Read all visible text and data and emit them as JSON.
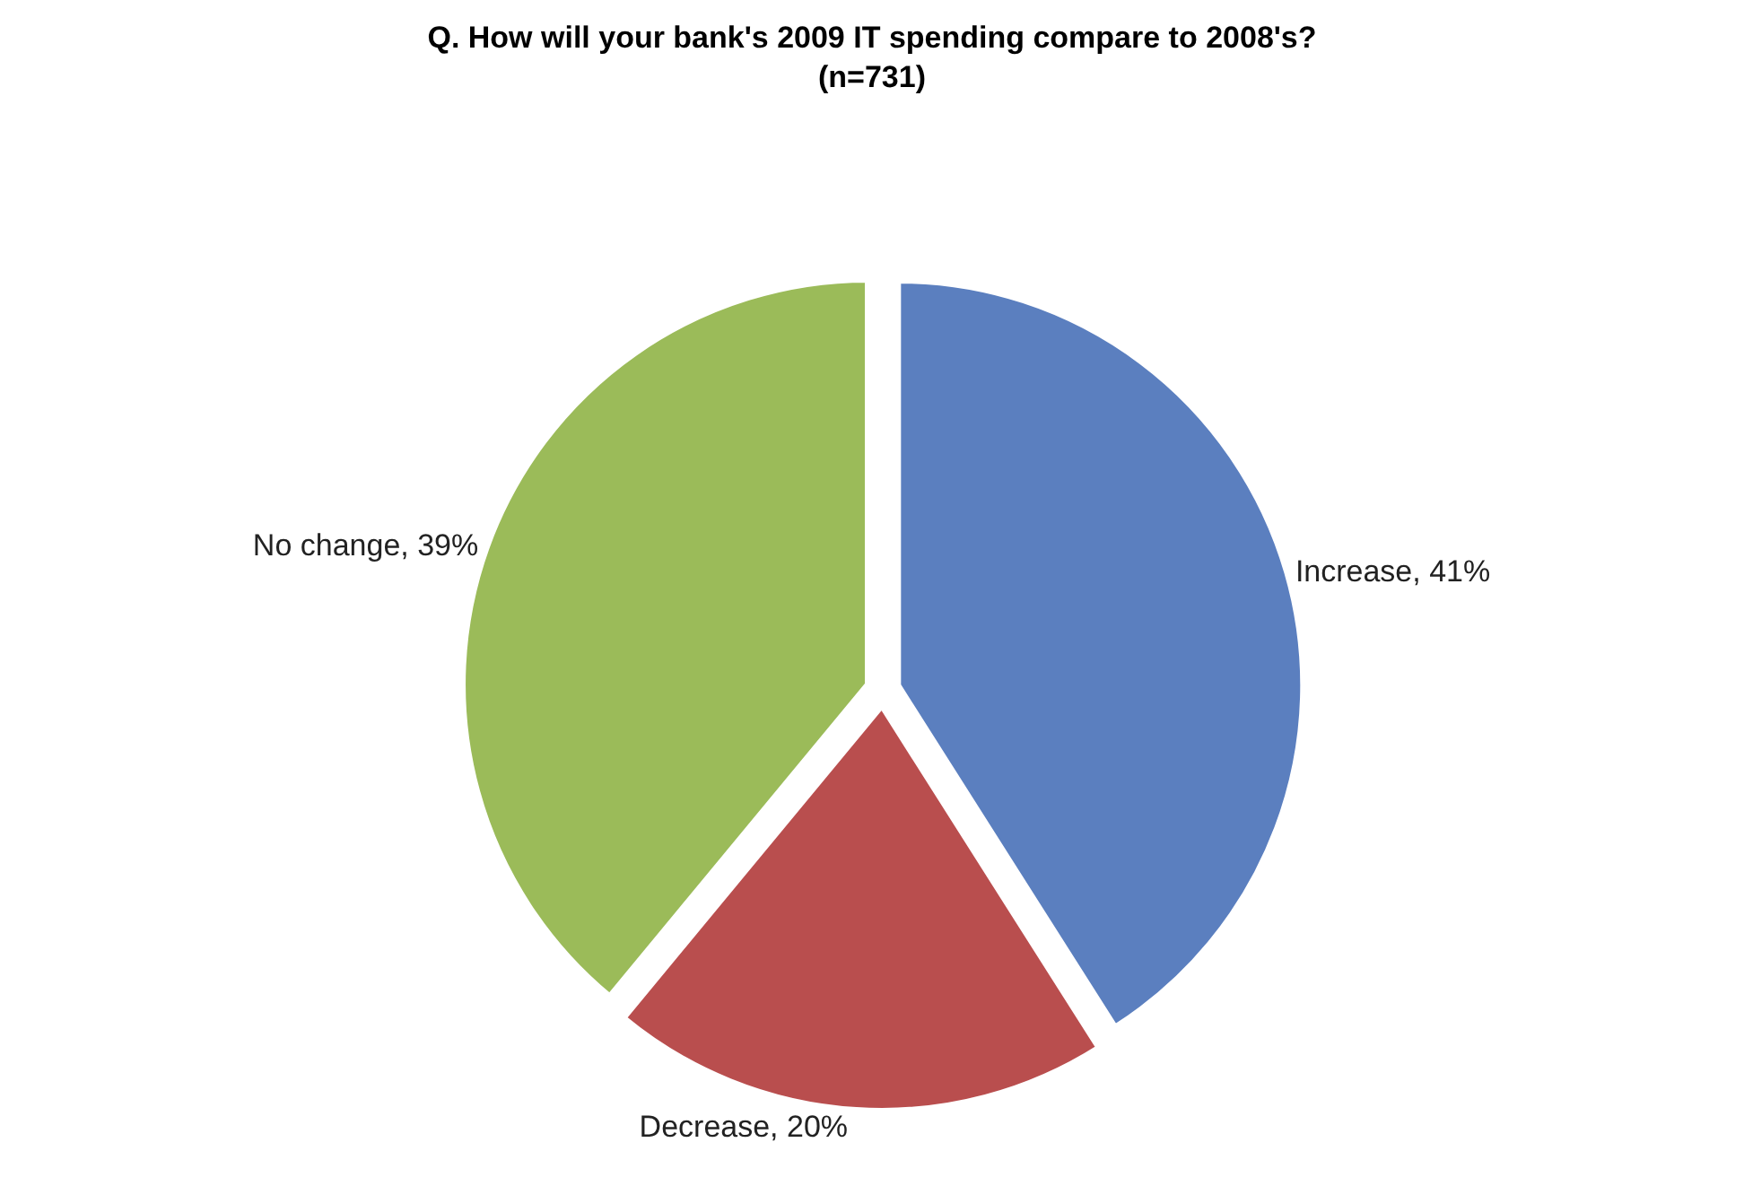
{
  "chart_data": {
    "type": "pie",
    "title": "Q. How will your bank's 2009 IT spending compare to 2008's?\n(n=731)",
    "categories": [
      "Increase",
      "Decrease",
      "No change"
    ],
    "values": [
      41,
      20,
      39
    ],
    "value_labels": [
      "41%",
      "20%",
      "39%"
    ],
    "colors": [
      "#5b7fbf",
      "#b94e4e",
      "#9bbb59"
    ],
    "legend": false
  }
}
